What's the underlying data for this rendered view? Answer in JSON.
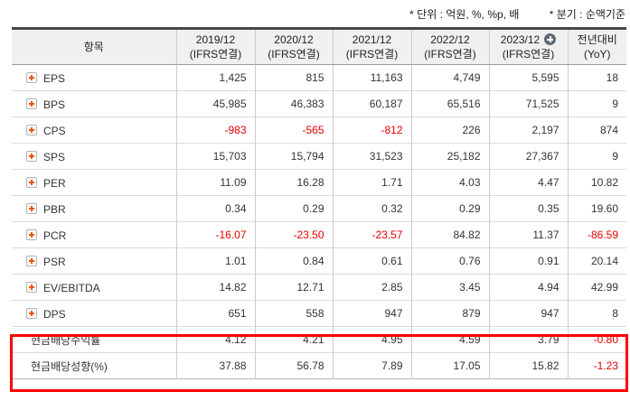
{
  "notes": {
    "unit_note": "* 단위 : 억원, %, %p, 배",
    "basis_note": "* 분기 : 순액기준"
  },
  "table": {
    "item_header": "항목",
    "columns": [
      {
        "period": "2019/12",
        "standard": "(IFRS연결)"
      },
      {
        "period": "2020/12",
        "standard": "(IFRS연결)"
      },
      {
        "period": "2021/12",
        "standard": "(IFRS연결)"
      },
      {
        "period": "2022/12",
        "standard": "(IFRS연결)"
      },
      {
        "period": "2023/12",
        "standard": "(IFRS연결)",
        "badge_icon": "plus-circle"
      },
      {
        "period": "전년대비",
        "standard": "(YoY)"
      }
    ],
    "rows": [
      {
        "label": "EPS",
        "icon": true,
        "highlighted": false,
        "values": [
          "1,425",
          "815",
          "11,163",
          "4,749",
          "5,595",
          "18"
        ]
      },
      {
        "label": "BPS",
        "icon": true,
        "highlighted": false,
        "values": [
          "45,985",
          "46,383",
          "60,187",
          "65,516",
          "71,525",
          "9"
        ]
      },
      {
        "label": "CPS",
        "icon": true,
        "highlighted": false,
        "values": [
          "-983",
          "-565",
          "-812",
          "226",
          "2,197",
          "874"
        ]
      },
      {
        "label": "SPS",
        "icon": true,
        "highlighted": false,
        "values": [
          "15,703",
          "15,794",
          "31,523",
          "25,182",
          "27,367",
          "9"
        ]
      },
      {
        "label": "PER",
        "icon": true,
        "highlighted": false,
        "values": [
          "11.09",
          "16.28",
          "1.71",
          "4.03",
          "4.47",
          "10.82"
        ]
      },
      {
        "label": "PBR",
        "icon": true,
        "highlighted": false,
        "values": [
          "0.34",
          "0.29",
          "0.32",
          "0.29",
          "0.35",
          "19.60"
        ]
      },
      {
        "label": "PCR",
        "icon": true,
        "highlighted": false,
        "values": [
          "-16.07",
          "-23.50",
          "-23.57",
          "84.82",
          "11.37",
          "-86.59"
        ]
      },
      {
        "label": "PSR",
        "icon": true,
        "highlighted": false,
        "values": [
          "1.01",
          "0.84",
          "0.61",
          "0.76",
          "0.91",
          "20.14"
        ]
      },
      {
        "label": "EV/EBITDA",
        "icon": true,
        "highlighted": false,
        "values": [
          "14.82",
          "12.71",
          "2.85",
          "3.45",
          "4.94",
          "42.99"
        ]
      },
      {
        "label": "DPS",
        "icon": true,
        "highlighted": false,
        "values": [
          "651",
          "558",
          "947",
          "879",
          "947",
          "8"
        ]
      },
      {
        "label": "현금배당수익률",
        "icon": false,
        "highlighted": true,
        "values": [
          "4.12",
          "4.21",
          "4.95",
          "4.59",
          "3.79",
          "-0.80"
        ]
      },
      {
        "label": "현금배당성향(%)",
        "icon": false,
        "highlighted": true,
        "values": [
          "37.88",
          "56.78",
          "7.89",
          "17.05",
          "15.82",
          "-1.23"
        ]
      }
    ]
  },
  "colors": {
    "negative_value": "#e60000",
    "highlight_box": "#fd0000",
    "expand_icon_orange": "#f25505",
    "header_background": "#f0f0f0",
    "badge_gray": "#5d6a73",
    "table_top_border": "#474747"
  }
}
